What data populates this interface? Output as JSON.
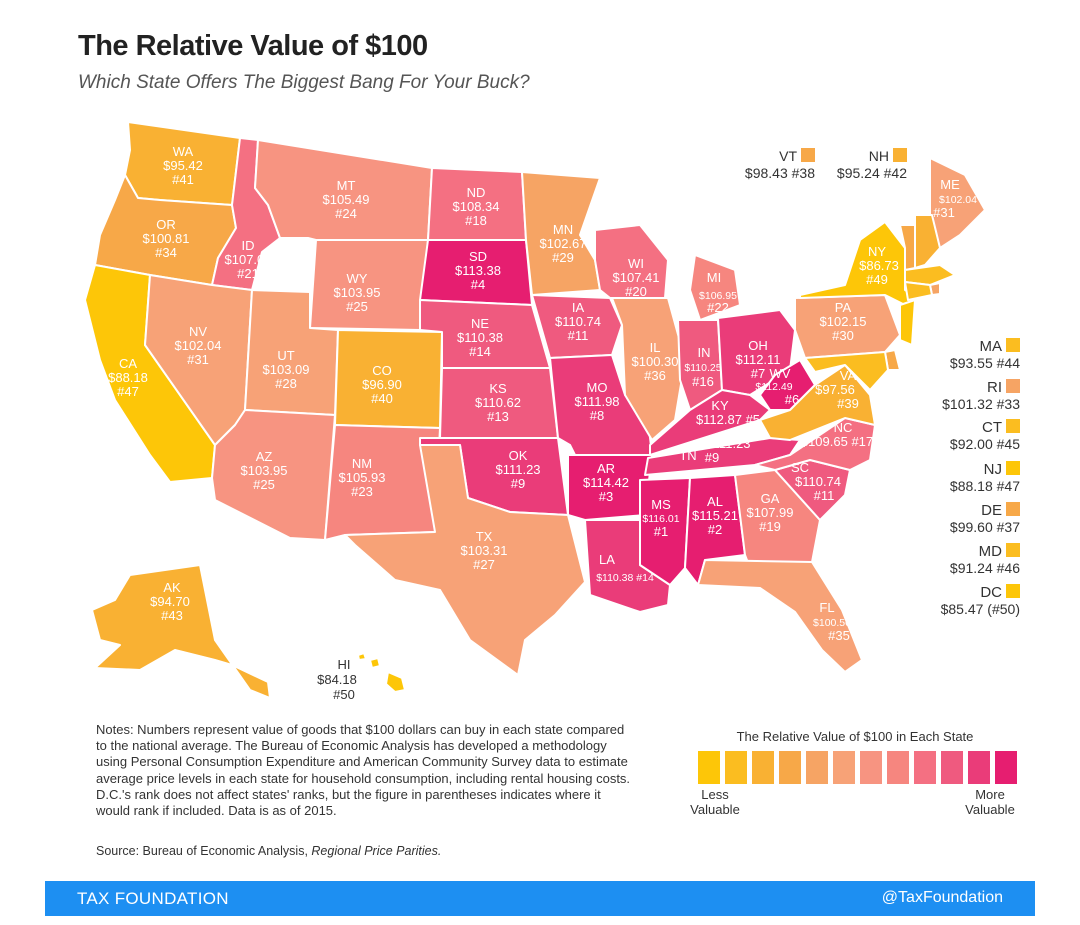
{
  "header": {
    "title": "The Relative Value of $100",
    "subtitle": "Which State Offers The Biggest Bang For Your Buck?"
  },
  "colors": {
    "scale": [
      "#fdc608",
      "#fbbd20",
      "#f9b133",
      "#f7a848",
      "#f6a464",
      "#f7a277",
      "#f79481",
      "#f6867f",
      "#f47082",
      "#ef5a7f",
      "#ea3c79",
      "#e61e70"
    ],
    "footer": "#1d8ff2"
  },
  "states": {
    "WA": {
      "name": "WA",
      "value": "$95.42",
      "rank": "#41"
    },
    "OR": {
      "name": "OR",
      "value": "$100.81",
      "rank": "#34"
    },
    "CA": {
      "name": "CA",
      "value": "$88.18",
      "rank": "#47"
    },
    "ID": {
      "name": "ID",
      "value": "$107.07",
      "rank": "#21"
    },
    "NV": {
      "name": "NV",
      "value": "$102.04",
      "rank": "#31"
    },
    "MT": {
      "name": "MT",
      "value": "$105.49",
      "rank": "#24"
    },
    "WY": {
      "name": "WY",
      "value": "$103.95",
      "rank": "#25"
    },
    "UT": {
      "name": "UT",
      "value": "$103.09",
      "rank": "#28"
    },
    "AZ": {
      "name": "AZ",
      "value": "$103.95",
      "rank": "#25"
    },
    "CO": {
      "name": "CO",
      "value": "$96.90",
      "rank": "#40"
    },
    "NM": {
      "name": "NM",
      "value": "$105.93",
      "rank": "#23"
    },
    "ND": {
      "name": "ND",
      "value": "$108.34",
      "rank": "#18"
    },
    "SD": {
      "name": "SD",
      "value": "$113.38",
      "rank": "#4"
    },
    "NE": {
      "name": "NE",
      "value": "$110.38",
      "rank": "#14"
    },
    "KS": {
      "name": "KS",
      "value": "$110.62",
      "rank": "#13"
    },
    "OK": {
      "name": "OK",
      "value": "$111.23",
      "rank": "#9"
    },
    "TX": {
      "name": "TX",
      "value": "$103.31",
      "rank": "#27"
    },
    "MN": {
      "name": "MN",
      "value": "$102.67",
      "rank": "#29"
    },
    "IA": {
      "name": "IA",
      "value": "$110.74",
      "rank": "#11"
    },
    "MO": {
      "name": "MO",
      "value": "$111.98",
      "rank": "#8"
    },
    "AR": {
      "name": "AR",
      "value": "$114.42",
      "rank": "#3"
    },
    "LA": {
      "name": "LA",
      "value": "$110.38 #14"
    },
    "WI": {
      "name": "WI",
      "value": "$107.41",
      "rank": "#20"
    },
    "IL": {
      "name": "IL",
      "value": "$100.30",
      "rank": "#36"
    },
    "MS": {
      "name": "MS",
      "value": "$116.01",
      "rank": "#1"
    },
    "MI": {
      "name": "MI",
      "value": "$106.95",
      "rank": "#22"
    },
    "IN": {
      "name": "IN",
      "value": "$110.25",
      "rank": "#16"
    },
    "KY": {
      "name": "KY",
      "value": "$112.87 #5"
    },
    "TN": {
      "name": "TN",
      "value": "$111.23",
      "rank": "#9"
    },
    "AL": {
      "name": "AL",
      "value": "$115.21",
      "rank": "#2"
    },
    "OH": {
      "name": "OH",
      "value": "$112.11",
      "rank": "#7"
    },
    "GA": {
      "name": "GA",
      "value": "$107.99",
      "rank": "#19"
    },
    "FL": {
      "name": "FL",
      "value": "$100.50",
      "rank": "#35"
    },
    "SC": {
      "name": "SC",
      "value": "$110.74",
      "rank": "#11"
    },
    "NC": {
      "name": "NC",
      "value": "$109.65 #17"
    },
    "WV": {
      "name": "WV",
      "value": "$112.49",
      "rank": "#6"
    },
    "VA": {
      "name": "VA",
      "value": "$97.56",
      "rank": "#39"
    },
    "PA": {
      "name": "PA",
      "value": "$102.15",
      "rank": "#30"
    },
    "NY": {
      "name": "NY",
      "value": "$86.73",
      "rank": "#49"
    },
    "ME": {
      "name": "ME",
      "value": "$102.04",
      "rank": "#31"
    },
    "AK": {
      "name": "AK",
      "value": "$94.70",
      "rank": "#43"
    },
    "HI": {
      "name": "HI",
      "value": "$84.18",
      "rank": "#50"
    }
  },
  "small_states": {
    "VT": {
      "name": "VT",
      "value": "$98.43 #38"
    },
    "NH": {
      "name": "NH",
      "value": "$95.24 #42"
    },
    "MA": {
      "name": "MA",
      "value": "$93.55 #44"
    },
    "RI": {
      "name": "RI",
      "value": "$101.32 #33"
    },
    "CT": {
      "name": "CT",
      "value": "$92.00 #45"
    },
    "NJ": {
      "name": "NJ",
      "value": "$88.18 #47"
    },
    "DE": {
      "name": "DE",
      "value": "$99.60 #37"
    },
    "MD": {
      "name": "MD",
      "value": "$91.24 #46"
    },
    "DC": {
      "name": "DC",
      "value": "$85.47 (#50)"
    }
  },
  "notes": "Notes: Numbers represent value of goods that $100 dollars can buy in each state compared to the national average. The Bureau of Economic Analysis has developed a methodology using Personal Consumption Expenditure and American Community Survey data to estimate average price levels in each state for household consumption, including rental housing costs. D.C.'s rank does not affect states' ranks, but the figure in parentheses indicates where it would rank if included. Data is as of 2015.",
  "source": {
    "prefix": "Source: Bureau of Economic Analysis, ",
    "title": "Regional Price Parities."
  },
  "legend": {
    "title": "The Relative Value of $100 in Each State",
    "low_line1": "Less",
    "low_line2": "Valuable",
    "high_line1": "More",
    "high_line2": "Valuable"
  },
  "footer": {
    "org": "TAX FOUNDATION",
    "handle": "@TaxFoundation"
  }
}
